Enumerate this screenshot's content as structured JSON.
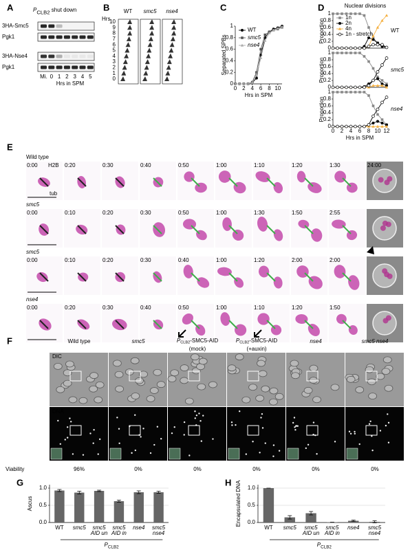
{
  "panel_a": {
    "letter": "A",
    "title": {
      "main": "P",
      "sub": "CLB2",
      "rest": " shut down"
    },
    "rows": [
      "3HA-Smc5",
      "Pgk1",
      "3HA-Nse4",
      "Pgk1"
    ],
    "lanes": [
      "Mi.",
      "0",
      "1",
      "2",
      "3",
      "4",
      "5"
    ],
    "xlabel": "Hrs in SPM"
  },
  "panel_b": {
    "letter": "B",
    "ylabel": "Hrs",
    "ticks": [
      "0",
      "1",
      "2",
      "3",
      "4",
      "5",
      "6",
      "7",
      "8",
      "9",
      "10"
    ],
    "columns": [
      "WT",
      "smc5",
      "nse4"
    ]
  },
  "panel_e": {
    "letter": "E",
    "markers": [
      "H2B",
      "tub"
    ],
    "rows": [
      {
        "label": "Wild type",
        "times": [
          "0:00",
          "0:20",
          "0:30",
          "0:40",
          "0:50",
          "1:00",
          "1:10",
          "1:20",
          "1:30",
          "24:00"
        ]
      },
      {
        "label": "smc5",
        "times": [
          "0:00",
          "0:10",
          "0:20",
          "0:30",
          "0:50",
          "1:00",
          "1:30",
          "1:50",
          "2:55"
        ]
      },
      {
        "label": "smc5",
        "times": [
          "0:00",
          "0:10",
          "0:20",
          "0:30",
          "0:40",
          "1:00",
          "1:20",
          "2:00",
          "2:00"
        ]
      },
      {
        "label": "nse4",
        "times": [
          "0:00",
          "0:20",
          "0:30",
          "0:40",
          "0:50",
          "1:00",
          "1:10",
          "1:20",
          "1:50"
        ]
      }
    ]
  },
  "panel_f": {
    "letter": "F",
    "columns": [
      {
        "label": "Wild type"
      },
      {
        "label": "smc5"
      },
      {
        "main": "P",
        "sub": "CLB2",
        "rest": "-SMC5-AID",
        "note": "(mock)"
      },
      {
        "main": "P",
        "sub": "CLB2",
        "rest": "-SMC5-AID",
        "note": "(+auxin)"
      },
      {
        "label": "nse4"
      },
      {
        "label": "smc5 nse4"
      }
    ],
    "rows": [
      "DIC",
      "DNA"
    ],
    "viability_label": "Viability",
    "viability": [
      "96%",
      "0%",
      "0%",
      "0%",
      "0%",
      "0%"
    ]
  },
  "chart_data": [
    {
      "type": "line",
      "panel": "C",
      "xlabel": "Hrs in SPM",
      "ylabel": "Separated SPBs",
      "x": [
        0,
        1,
        2,
        3,
        4,
        5,
        6,
        7,
        8,
        9,
        10,
        11
      ],
      "xlim": [
        0,
        11
      ],
      "xticks": [
        0,
        2,
        4,
        6,
        8,
        10
      ],
      "ylim": [
        0,
        1
      ],
      "yticks": [
        0,
        0.2,
        0.4,
        0.6,
        0.8,
        1
      ],
      "legend": "upper left",
      "series": [
        {
          "name": "WT",
          "color": "#000000",
          "marker": "circle",
          "values": [
            0,
            0,
            0,
            0,
            0.02,
            0.1,
            0.5,
            0.8,
            0.9,
            0.95,
            0.97,
            1
          ]
        },
        {
          "name": "smc5",
          "color": "#555555",
          "marker": "square",
          "values": [
            0,
            0,
            0,
            0,
            0.03,
            0.2,
            0.6,
            0.85,
            0.9,
            0.93,
            0.95,
            0.98
          ]
        },
        {
          "name": "nse4",
          "color": "#aaaaaa",
          "marker": "triangle",
          "values": [
            0,
            0,
            0,
            0,
            0.02,
            0.15,
            0.45,
            0.75,
            0.88,
            0.93,
            0.96,
            0.99
          ]
        }
      ]
    },
    {
      "type": "line",
      "panel": "D",
      "label": "WT",
      "legend_title": "Nuclear divisions",
      "legend": "upper left",
      "ylabel": "Proportion",
      "x": [
        0,
        1,
        2,
        3,
        4,
        5,
        6,
        7,
        8,
        9,
        10,
        11,
        12
      ],
      "xlim": [
        0,
        12
      ],
      "ylim": [
        0,
        1
      ],
      "yticks": [
        0,
        0.2,
        0.4,
        0.6,
        0.8,
        1
      ],
      "series": [
        {
          "name": "1n",
          "color": "#888888",
          "marker": "square",
          "values": [
            1,
            1,
            1,
            1,
            1,
            1,
            1,
            0.95,
            0.6,
            0.3,
            0.15,
            0.05,
            0.02
          ]
        },
        {
          "name": "2n",
          "color": "#000000",
          "marker": "circle",
          "values": [
            0,
            0,
            0,
            0,
            0,
            0,
            0,
            0.05,
            0.3,
            0.25,
            0.15,
            0.05,
            0.02
          ]
        },
        {
          "name": "4n",
          "color": "#f5b041",
          "marker": "triangle",
          "values": [
            0,
            0,
            0,
            0,
            0,
            0,
            0,
            0,
            0.05,
            0.35,
            0.6,
            0.8,
            0.95
          ]
        },
        {
          "name": "1n - stretch",
          "color": "#000000",
          "marker": "open-circle",
          "values": [
            0,
            0,
            0,
            0,
            0,
            0,
            0,
            0,
            0.05,
            0.1,
            0.1,
            0.1,
            0.02
          ]
        }
      ]
    },
    {
      "type": "line",
      "label": "smc5",
      "ylabel": "Proportion",
      "x": [
        0,
        1,
        2,
        3,
        4,
        5,
        6,
        7,
        8,
        9,
        10,
        11,
        12
      ],
      "xlim": [
        0,
        12
      ],
      "ylim": [
        0,
        1
      ],
      "yticks": [
        0,
        0.2,
        0.4,
        0.6,
        0.8,
        1
      ],
      "series": [
        {
          "name": "1n",
          "color": "#888888",
          "marker": "square",
          "values": [
            1,
            1,
            1,
            1,
            1,
            1,
            1,
            0.9,
            0.75,
            0.55,
            0.3,
            0.2,
            0.1
          ]
        },
        {
          "name": "2n",
          "color": "#000000",
          "marker": "circle",
          "values": [
            0,
            0,
            0,
            0,
            0,
            0,
            0,
            0.02,
            0.1,
            0.2,
            0.25,
            0.1,
            0.05
          ]
        },
        {
          "name": "4n",
          "color": "#f5b041",
          "marker": "triangle",
          "values": [
            0,
            0,
            0,
            0,
            0,
            0,
            0,
            0,
            0,
            0.05,
            0.05,
            0.05,
            0
          ]
        },
        {
          "name": "1n - stretch",
          "color": "#000000",
          "marker": "open-circle",
          "values": [
            0,
            0,
            0,
            0,
            0,
            0,
            0,
            0,
            0.05,
            0.2,
            0.45,
            0.65,
            0.85
          ]
        }
      ]
    },
    {
      "type": "line",
      "label": "nse4",
      "ylabel": "Proportion",
      "xlabel": "Hrs in SPM",
      "x": [
        0,
        1,
        2,
        3,
        4,
        5,
        6,
        7,
        8,
        9,
        10,
        11,
        12
      ],
      "xlim": [
        0,
        12
      ],
      "xticks": [
        0,
        2,
        4,
        6,
        8,
        10,
        12
      ],
      "ylim": [
        0,
        1
      ],
      "yticks": [
        0,
        0.2,
        0.4,
        0.6,
        0.8,
        1
      ],
      "series": [
        {
          "name": "1n",
          "color": "#888888",
          "marker": "square",
          "values": [
            1,
            1,
            1,
            1,
            1,
            1,
            1,
            1,
            0.9,
            0.6,
            0.35,
            0.2,
            0.05
          ]
        },
        {
          "name": "2n",
          "color": "#000000",
          "marker": "circle",
          "values": [
            0,
            0,
            0,
            0,
            0,
            0,
            0,
            0,
            0.05,
            0.1,
            0.15,
            0.1,
            0.05
          ]
        },
        {
          "name": "4n",
          "color": "#f5b041",
          "marker": "triangle",
          "values": [
            0,
            0,
            0,
            0,
            0,
            0,
            0,
            0,
            0,
            0,
            0,
            0,
            0
          ]
        },
        {
          "name": "1n - stretch",
          "color": "#000000",
          "marker": "open-circle",
          "values": [
            0,
            0,
            0,
            0,
            0,
            0,
            0,
            0,
            0.05,
            0.3,
            0.5,
            0.7,
            0.85
          ]
        }
      ]
    },
    {
      "type": "bar",
      "panel": "G",
      "ylabel": "Ascus",
      "color": "#666666",
      "grid": true,
      "categories": [
        [
          "WT"
        ],
        [
          "smc5"
        ],
        [
          "smc5",
          "AID un"
        ],
        [
          "smc5",
          "AID in"
        ],
        [
          "nse4"
        ],
        [
          "smc5",
          "nse4"
        ]
      ],
      "values": [
        0.93,
        0.87,
        0.92,
        0.62,
        0.88,
        0.88
      ],
      "errors": [
        0.03,
        0.04,
        0.02,
        0.03,
        0.04,
        0.03
      ],
      "ylim": [
        0,
        1.1
      ],
      "yticks": [
        {
          "value": 0,
          "label": "0.0"
        },
        {
          "value": 0.5,
          "label": "0.5"
        },
        {
          "value": 1,
          "label": "1.0"
        }
      ],
      "group_label": {
        "main": "P",
        "sub": "CLB2"
      }
    },
    {
      "type": "bar",
      "panel": "H",
      "ylabel": "Encapsulated DNA",
      "color": "#666666",
      "grid": true,
      "categories": [
        [
          "WT"
        ],
        [
          "smc5"
        ],
        [
          "smc5",
          "AID un"
        ],
        [
          "smc5",
          "AID in"
        ],
        [
          "nse4"
        ],
        [
          "smc5",
          "nse4"
        ]
      ],
      "values": [
        1,
        0.15,
        0.27,
        0.01,
        0.05,
        0.02
      ],
      "errors": [
        0,
        0.05,
        0.05,
        0,
        0.02,
        0.03
      ],
      "ylim": [
        0,
        1.1
      ],
      "yticks": [
        {
          "value": 0,
          "label": "0.0"
        },
        {
          "value": 0.5,
          "label": "0.5"
        },
        {
          "value": 1,
          "label": "1.0"
        }
      ],
      "group_label": {
        "main": "P",
        "sub": "CLB2"
      }
    }
  ]
}
